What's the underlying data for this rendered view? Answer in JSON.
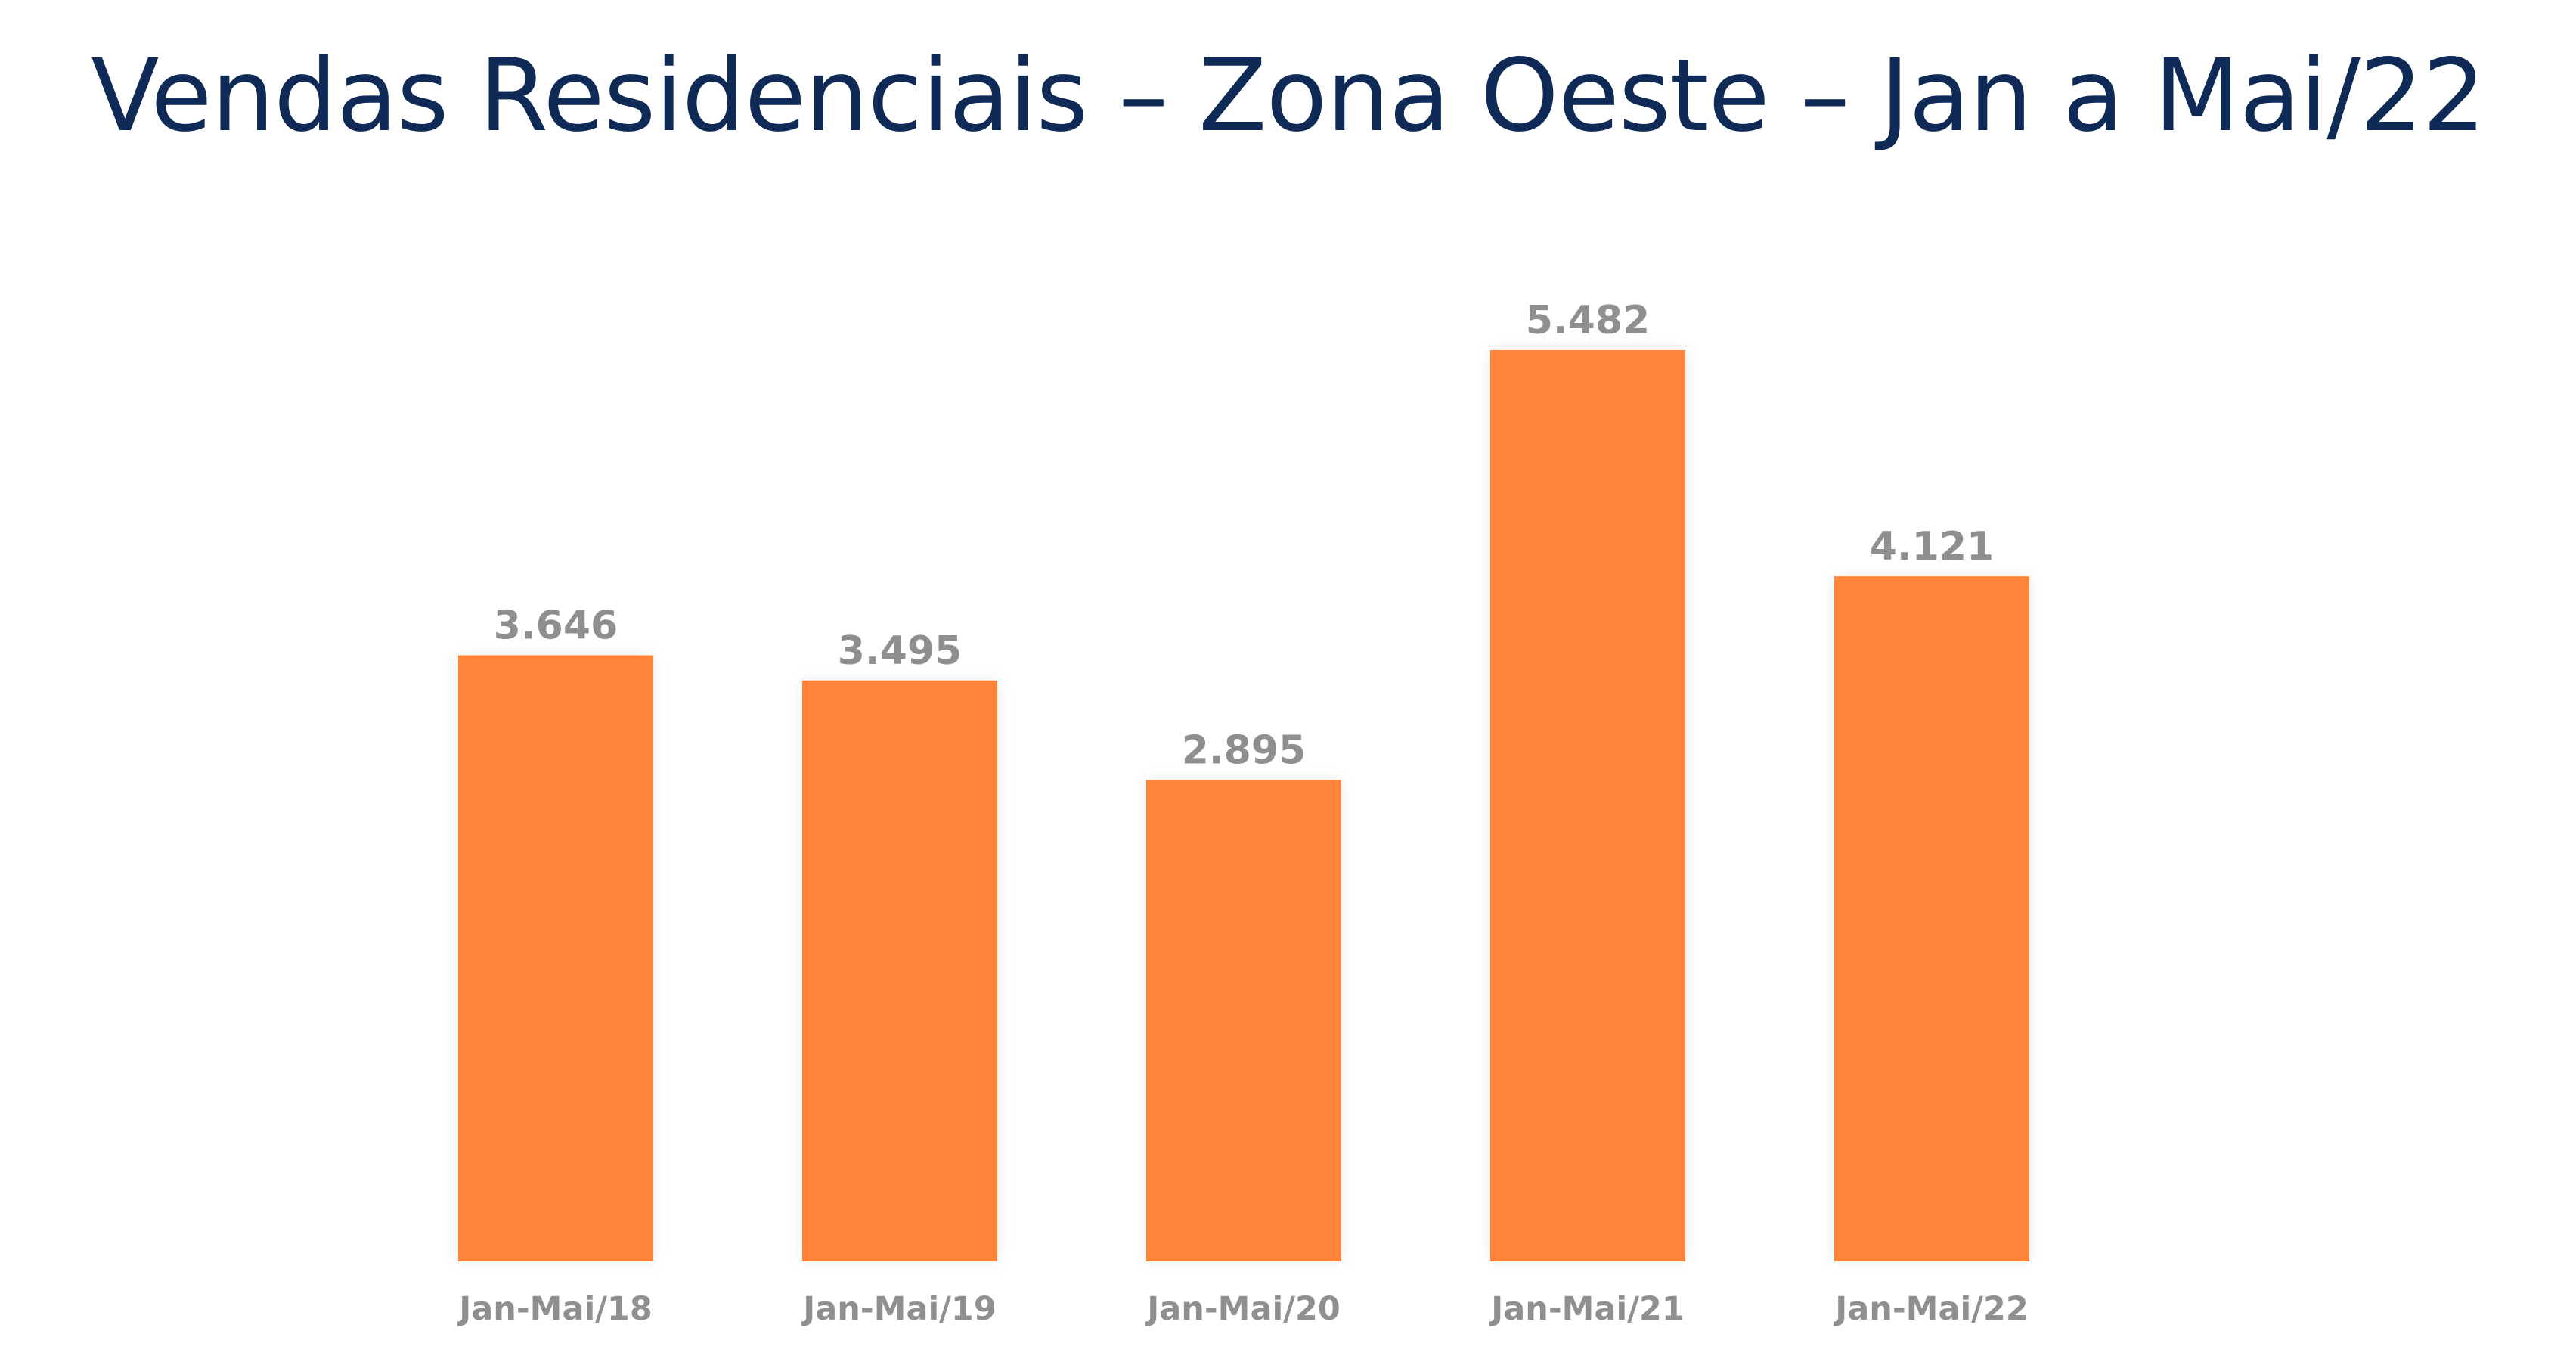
{
  "chart_data": {
    "type": "bar",
    "title": "Vendas Residenciais – Zona Oeste – Jan a Mai/22",
    "categories": [
      "Jan-Mai/18",
      "Jan-Mai/19",
      "Jan-Mai/20",
      "Jan-Mai/21",
      "Jan-Mai/22"
    ],
    "values": [
      3646,
      3495,
      2895,
      5482,
      4121
    ],
    "value_labels": [
      "3.646",
      "3.495",
      "2.895",
      "5.482",
      "4.121"
    ],
    "xlabel": "",
    "ylabel": "",
    "ylim": [
      0,
      5482
    ],
    "grid": false,
    "legend": "none",
    "colors": {
      "bar": "#ff8339",
      "title": "#0f2a57",
      "labels": "#8f8f8f"
    }
  }
}
